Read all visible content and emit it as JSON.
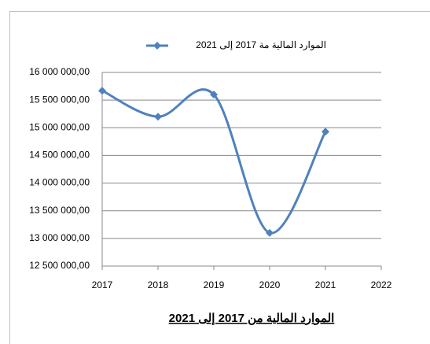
{
  "chart_data": {
    "type": "line",
    "smooth": true,
    "x": [
      2017,
      2018,
      2019,
      2020,
      2021
    ],
    "series": [
      {
        "name": "الموارد المالية مة 2017 إلى 2021",
        "color": "#4f81bd",
        "values": [
          15670000,
          15200000,
          15600000,
          13100000,
          14930000
        ]
      }
    ],
    "xlim": [
      2017,
      2022
    ],
    "xticks": [
      2017,
      2018,
      2019,
      2020,
      2021,
      2022
    ],
    "ylim": [
      12500000,
      16000000
    ],
    "yticks": [
      {
        "value": 12500000,
        "label": "12 500 000,00"
      },
      {
        "value": 13000000,
        "label": "13 000 000,00"
      },
      {
        "value": 13500000,
        "label": "13 500 000,00"
      },
      {
        "value": 14000000,
        "label": "14 000 000,00"
      },
      {
        "value": 14500000,
        "label": "14 500 000,00"
      },
      {
        "value": 15000000,
        "label": "15 000 000,00"
      },
      {
        "value": 15500000,
        "label": "15 500 000,00"
      },
      {
        "value": 16000000,
        "label": "16 000 000,00"
      }
    ],
    "grid": true,
    "legend": "top",
    "caption": "الموارد المالية من 2017 إلى 2021"
  }
}
